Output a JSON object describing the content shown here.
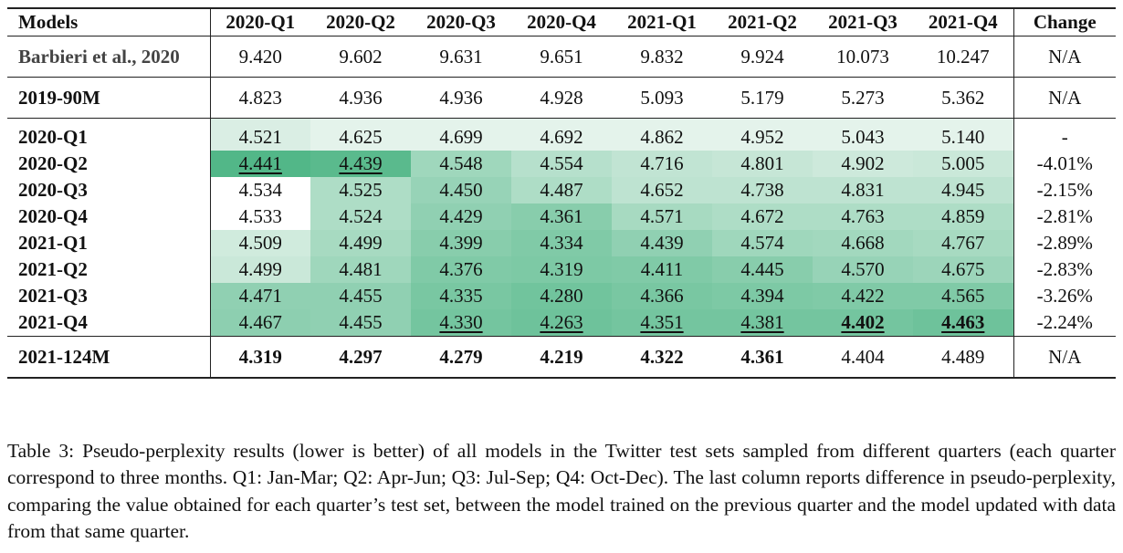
{
  "table": {
    "headers": [
      "Models",
      "2020-Q1",
      "2020-Q2",
      "2020-Q3",
      "2020-Q4",
      "2021-Q1",
      "2021-Q2",
      "2021-Q3",
      "2021-Q4",
      "Change"
    ],
    "rows": [
      {
        "model": "Barbieri et al., 2020",
        "values": [
          "9.420",
          "9.602",
          "9.631",
          "9.651",
          "9.832",
          "9.924",
          "10.073",
          "10.247"
        ],
        "change": "N/A"
      },
      {
        "model": "2019-90M",
        "values": [
          "4.823",
          "4.936",
          "4.936",
          "4.928",
          "5.093",
          "5.179",
          "5.273",
          "5.362"
        ],
        "change": "N/A"
      },
      {
        "model": "2020-Q1",
        "values": [
          "4.521",
          "4.625",
          "4.699",
          "4.692",
          "4.862",
          "4.952",
          "5.043",
          "5.140"
        ],
        "change": "-"
      },
      {
        "model": "2020-Q2",
        "values": [
          "4.441",
          "4.439",
          "4.548",
          "4.554",
          "4.716",
          "4.801",
          "4.902",
          "5.005"
        ],
        "change": "-4.01%"
      },
      {
        "model": "2020-Q3",
        "values": [
          "4.534",
          "4.525",
          "4.450",
          "4.487",
          "4.652",
          "4.738",
          "4.831",
          "4.945"
        ],
        "change": "-2.15%"
      },
      {
        "model": "2020-Q4",
        "values": [
          "4.533",
          "4.524",
          "4.429",
          "4.361",
          "4.571",
          "4.672",
          "4.763",
          "4.859"
        ],
        "change": "-2.81%"
      },
      {
        "model": "2021-Q1",
        "values": [
          "4.509",
          "4.499",
          "4.399",
          "4.334",
          "4.439",
          "4.574",
          "4.668",
          "4.767"
        ],
        "change": "-2.89%"
      },
      {
        "model": "2021-Q2",
        "values": [
          "4.499",
          "4.481",
          "4.376",
          "4.319",
          "4.411",
          "4.445",
          "4.570",
          "4.675"
        ],
        "change": "-2.83%"
      },
      {
        "model": "2021-Q3",
        "values": [
          "4.471",
          "4.455",
          "4.335",
          "4.280",
          "4.366",
          "4.394",
          "4.422",
          "4.565"
        ],
        "change": "-3.26%"
      },
      {
        "model": "2021-Q4",
        "values": [
          "4.467",
          "4.455",
          "4.330",
          "4.263",
          "4.351",
          "4.381",
          "4.402",
          "4.463"
        ],
        "change": "-2.24%"
      },
      {
        "model": "2021-124M",
        "values": [
          "4.319",
          "4.297",
          "4.279",
          "4.219",
          "4.322",
          "4.361",
          "4.404",
          "4.489"
        ],
        "change": "N/A"
      }
    ]
  },
  "caption": "Table 3: Pseudo-perplexity results (lower is better) of all models in the Twitter test sets sampled from different quarters (each quarter correspond to three months. Q1: Jan-Mar; Q2: Apr-Jun; Q3: Jul-Sep; Q4: Oct-Dec). The last column reports difference in pseudo-perplexity, comparing the value obtained for each quarter’s test set, between the model trained on the previous quarter and the model updated with data from that same quarter.",
  "colors": {
    "heat_light": "#e6f3ec",
    "heat_dark": "#52b788"
  }
}
